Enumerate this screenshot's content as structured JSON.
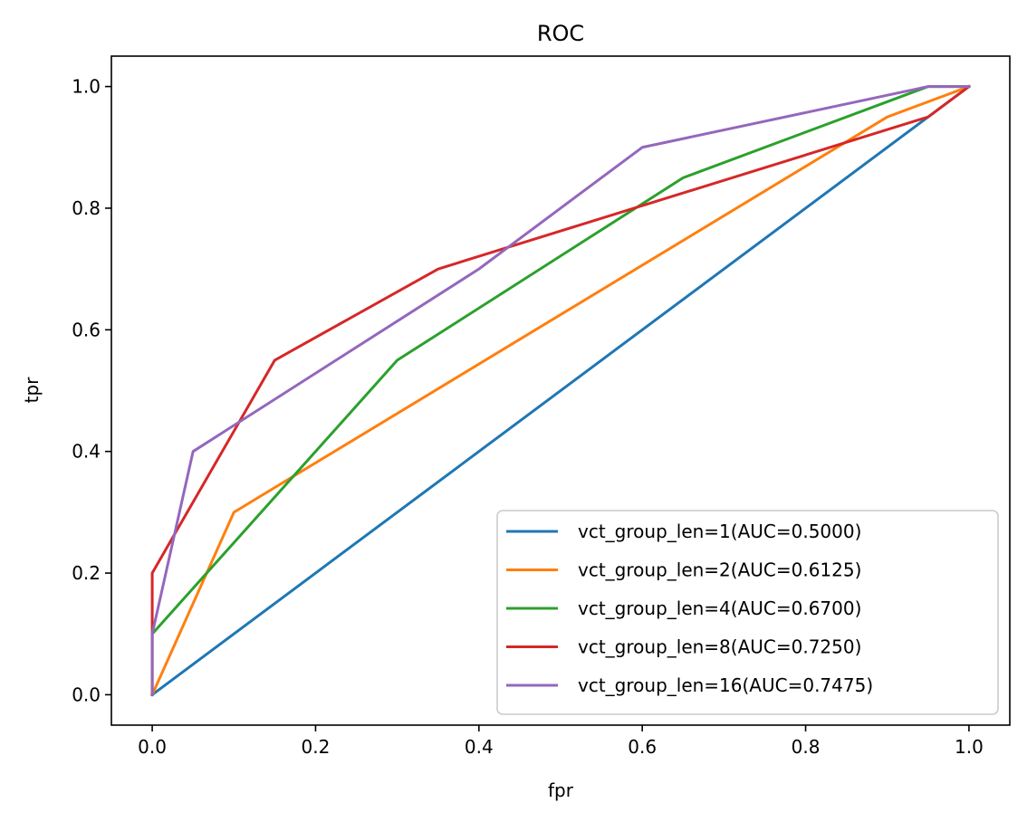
{
  "chart_data": {
    "type": "line",
    "title": "ROC",
    "xlabel": "fpr",
    "ylabel": "tpr",
    "xlim": [
      -0.05,
      1.05
    ],
    "ylim": [
      -0.05,
      1.05
    ],
    "xticks": [
      "0.0",
      "0.2",
      "0.4",
      "0.6",
      "0.8",
      "1.0"
    ],
    "yticks": [
      "0.0",
      "0.2",
      "0.4",
      "0.6",
      "0.8",
      "1.0"
    ],
    "grid": false,
    "legend_position": "lower-right",
    "series": [
      {
        "name": "vct_group_len=1(AUC=0.5000)",
        "color": "#1f77b4",
        "x": [
          0.0,
          0.95,
          1.0
        ],
        "y": [
          0.0,
          0.95,
          1.0
        ]
      },
      {
        "name": "vct_group_len=2(AUC=0.6125)",
        "color": "#ff7f0e",
        "x": [
          0.0,
          0.1,
          0.9,
          1.0
        ],
        "y": [
          0.0,
          0.3,
          0.95,
          1.0
        ]
      },
      {
        "name": "vct_group_len=4(AUC=0.6700)",
        "color": "#2ca02c",
        "x": [
          0.0,
          0.0,
          0.3,
          0.65,
          0.95,
          1.0
        ],
        "y": [
          0.0,
          0.1,
          0.55,
          0.85,
          1.0,
          1.0
        ]
      },
      {
        "name": "vct_group_len=8(AUC=0.7250)",
        "color": "#d62728",
        "x": [
          0.0,
          0.0,
          0.15,
          0.35,
          0.95,
          1.0
        ],
        "y": [
          0.0,
          0.2,
          0.55,
          0.7,
          0.95,
          1.0
        ]
      },
      {
        "name": "vct_group_len=16(AUC=0.7475)",
        "color": "#9467bd",
        "x": [
          0.0,
          0.0,
          0.05,
          0.4,
          0.6,
          0.95,
          1.0
        ],
        "y": [
          0.0,
          0.1,
          0.4,
          0.7,
          0.9,
          1.0,
          1.0
        ]
      }
    ]
  }
}
